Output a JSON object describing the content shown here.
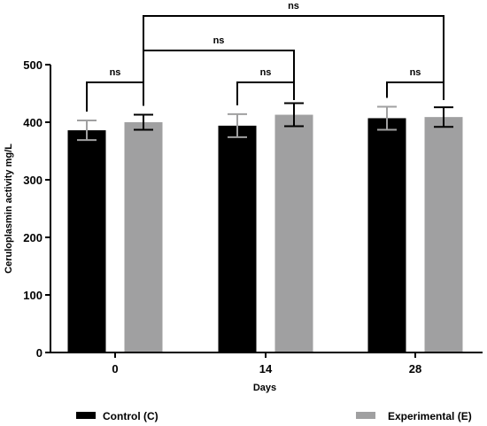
{
  "chart_data": {
    "type": "bar",
    "title": "",
    "xlabel": "Days",
    "ylabel": "Ceruloplasmin activity mg/L",
    "ylim": [
      0,
      500
    ],
    "yticks": [
      0,
      100,
      200,
      300,
      400,
      500
    ],
    "categories": [
      "0",
      "14",
      "28"
    ],
    "series": [
      {
        "name": "Control (C)",
        "color": "#000000",
        "values": [
          386,
          394,
          407
        ],
        "errors": [
          17,
          20,
          20
        ]
      },
      {
        "name": "Experimental (E)",
        "color": "#a0a0a1",
        "values": [
          400,
          413,
          409
        ],
        "errors": [
          13,
          20,
          17
        ]
      }
    ],
    "comparisons": [
      {
        "from": [
          0,
          0
        ],
        "to": [
          0,
          1
        ],
        "label": "ns"
      },
      {
        "from": [
          1,
          0
        ],
        "to": [
          1,
          1
        ],
        "label": "ns"
      },
      {
        "from": [
          2,
          0
        ],
        "to": [
          2,
          1
        ],
        "label": "ns"
      },
      {
        "from": [
          0,
          1
        ],
        "to": [
          1,
          1
        ],
        "label": "ns"
      },
      {
        "from": [
          0,
          1
        ],
        "to": [
          2,
          1
        ],
        "label": "ns"
      }
    ],
    "legend_position": "bottom",
    "grid": false
  }
}
